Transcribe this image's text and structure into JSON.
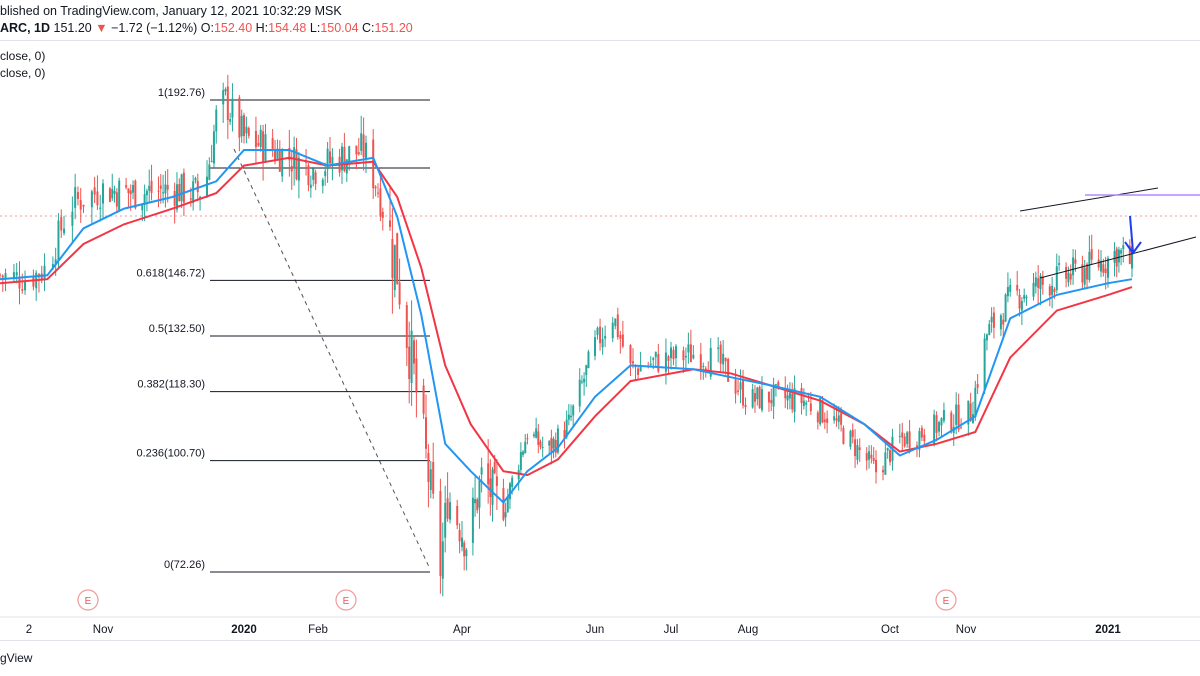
{
  "header": {
    "line1": "blished on TradingView.com, January 12, 2021 10:32:29 MSK",
    "symbol": "ARC, 1D",
    "price": "151.20",
    "change_arrow": "▼",
    "change": "−1.72 (−1.12%)",
    "o_label": "O:",
    "o_value": "152.40",
    "h_label": "H:",
    "h_value": "154.48",
    "l_label": "L:",
    "l_value": "150.04",
    "c_label": "C:",
    "c_value": "151.20"
  },
  "indicators": [
    "close, 0)",
    "close, 0)"
  ],
  "footer": {
    "brand": "gView"
  },
  "colors": {
    "up": "#26a69a",
    "down": "#ef5350",
    "ema_fast": "#2196f3",
    "ema_slow": "#f23645",
    "arrow": "#1e3ff0",
    "resistance": "#b388ff",
    "fib_line": "#131722"
  },
  "chart_data": {
    "type": "candlestick",
    "x_tick_labels": [
      "2",
      "Nov",
      "2020",
      "Feb",
      "Apr",
      "Jun",
      "Jul",
      "Aug",
      "Oct",
      "Nov",
      "2021"
    ],
    "fib_levels": [
      {
        "label": "1(192.76)",
        "value": 192.76
      },
      {
        "label": "0.618(146.72)",
        "value": 146.72
      },
      {
        "label": "0.5(132.50)",
        "value": 132.5
      },
      {
        "label": "0.382(118.30)",
        "value": 118.3
      },
      {
        "label": "0.236(100.70)",
        "value": 100.7
      },
      {
        "label": "0(72.26)",
        "value": 72.26
      }
    ],
    "earnings_markers": [
      "E",
      "E",
      "E"
    ],
    "price_path": [
      [
        "2019-09-25",
        148
      ],
      [
        "2019-10-05",
        147
      ],
      [
        "2019-10-12",
        150
      ],
      [
        "2019-10-20",
        166
      ],
      [
        "2019-11-01",
        170
      ],
      [
        "2019-11-15",
        169
      ],
      [
        "2019-12-01",
        170
      ],
      [
        "2019-12-10",
        169
      ],
      [
        "2019-12-15",
        170
      ],
      [
        "2019-12-20",
        188
      ],
      [
        "2019-12-24",
        192.5
      ],
      [
        "2020-01-01",
        183
      ],
      [
        "2020-01-10",
        181
      ],
      [
        "2020-01-20",
        178
      ],
      [
        "2020-01-30",
        175
      ],
      [
        "2020-02-10",
        178
      ],
      [
        "2020-02-20",
        180
      ],
      [
        "2020-02-26",
        170
      ],
      [
        "2020-03-05",
        150
      ],
      [
        "2020-03-10",
        130
      ],
      [
        "2020-03-15",
        110
      ],
      [
        "2020-03-20",
        88
      ],
      [
        "2020-03-23",
        73
      ],
      [
        "2020-03-26",
        92
      ],
      [
        "2020-04-03",
        80
      ],
      [
        "2020-04-10",
        96
      ],
      [
        "2020-04-20",
        88
      ],
      [
        "2020-05-01",
        108
      ],
      [
        "2020-05-10",
        103
      ],
      [
        "2020-05-20",
        110
      ],
      [
        "2020-06-01",
        130
      ],
      [
        "2020-06-08",
        138
      ],
      [
        "2020-06-15",
        124
      ],
      [
        "2020-06-25",
        126
      ],
      [
        "2020-07-10",
        128
      ],
      [
        "2020-07-20",
        126
      ],
      [
        "2020-08-01",
        116
      ],
      [
        "2020-08-10",
        117
      ],
      [
        "2020-08-25",
        116
      ],
      [
        "2020-09-05",
        112
      ],
      [
        "2020-09-15",
        105
      ],
      [
        "2020-09-25",
        98
      ],
      [
        "2020-10-05",
        106
      ],
      [
        "2020-10-15",
        108
      ],
      [
        "2020-10-25",
        111
      ],
      [
        "2020-11-03",
        113
      ],
      [
        "2020-11-10",
        133
      ],
      [
        "2020-11-20",
        142
      ],
      [
        "2020-12-01",
        145
      ],
      [
        "2020-12-15",
        148
      ],
      [
        "2021-01-01",
        152
      ],
      [
        "2021-01-05",
        154
      ],
      [
        "2021-01-12",
        151.2
      ]
    ],
    "ema_fast_path": [
      [
        "2019-09-25",
        147
      ],
      [
        "2019-10-12",
        148
      ],
      [
        "2019-10-25",
        160
      ],
      [
        "2019-11-10",
        165
      ],
      [
        "2019-12-01",
        168
      ],
      [
        "2019-12-20",
        172
      ],
      [
        "2020-01-01",
        180
      ],
      [
        "2020-01-20",
        180
      ],
      [
        "2020-02-05",
        176
      ],
      [
        "2020-02-24",
        178
      ],
      [
        "2020-03-05",
        163
      ],
      [
        "2020-03-15",
        138
      ],
      [
        "2020-03-25",
        105
      ],
      [
        "2020-04-05",
        98
      ],
      [
        "2020-04-20",
        90
      ],
      [
        "2020-05-01",
        98
      ],
      [
        "2020-05-15",
        104
      ],
      [
        "2020-06-01",
        117
      ],
      [
        "2020-06-15",
        125
      ],
      [
        "2020-07-10",
        124
      ],
      [
        "2020-07-25",
        122
      ],
      [
        "2020-08-10",
        120
      ],
      [
        "2020-09-01",
        117
      ],
      [
        "2020-09-20",
        110
      ],
      [
        "2020-10-05",
        102
      ],
      [
        "2020-10-20",
        106
      ],
      [
        "2020-11-05",
        112
      ],
      [
        "2020-11-20",
        137
      ],
      [
        "2020-12-10",
        143
      ],
      [
        "2021-01-01",
        146
      ],
      [
        "2021-01-12",
        147
      ]
    ],
    "ema_slow_path": [
      [
        "2019-09-25",
        146
      ],
      [
        "2019-10-12",
        147
      ],
      [
        "2019-10-25",
        156
      ],
      [
        "2019-11-10",
        161
      ],
      [
        "2019-12-01",
        165
      ],
      [
        "2019-12-20",
        169
      ],
      [
        "2020-01-01",
        176
      ],
      [
        "2020-01-20",
        178
      ],
      [
        "2020-02-05",
        176
      ],
      [
        "2020-02-24",
        177
      ],
      [
        "2020-03-05",
        168
      ],
      [
        "2020-03-15",
        150
      ],
      [
        "2020-03-25",
        125
      ],
      [
        "2020-04-05",
        110
      ],
      [
        "2020-04-20",
        98
      ],
      [
        "2020-05-01",
        97
      ],
      [
        "2020-05-15",
        101
      ],
      [
        "2020-06-01",
        112
      ],
      [
        "2020-06-15",
        121
      ],
      [
        "2020-07-10",
        124
      ],
      [
        "2020-07-25",
        123
      ],
      [
        "2020-08-10",
        120
      ],
      [
        "2020-09-01",
        116
      ],
      [
        "2020-09-20",
        110
      ],
      [
        "2020-10-05",
        103
      ],
      [
        "2020-10-20",
        105
      ],
      [
        "2020-11-05",
        108
      ],
      [
        "2020-11-20",
        127
      ],
      [
        "2020-12-10",
        139
      ],
      [
        "2021-01-01",
        143
      ],
      [
        "2021-01-12",
        145
      ]
    ]
  }
}
